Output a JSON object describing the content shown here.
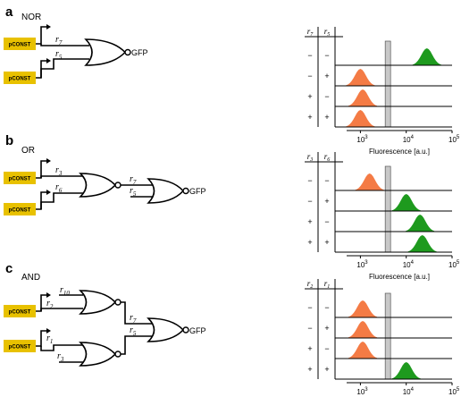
{
  "panels": [
    {
      "letter": "a",
      "gate_title": "NOR",
      "promoters": [
        "pCONST",
        "pCONST"
      ],
      "signals": [
        "r7",
        "r5"
      ],
      "signal_letters": [
        "r",
        "r"
      ],
      "signal_subs": [
        "7",
        "5"
      ],
      "output": "GFP",
      "table_headers": [
        "r7",
        "r5"
      ],
      "header_letters": [
        "r",
        "r"
      ],
      "header_subs": [
        "7",
        "5"
      ],
      "rows": [
        {
          "inputs": [
            "−",
            "−"
          ],
          "color": "green",
          "peak_log": 4.45
        },
        {
          "inputs": [
            "−",
            "+"
          ],
          "color": "orange",
          "peak_log": 3.0
        },
        {
          "inputs": [
            "+",
            "−"
          ],
          "color": "orange",
          "peak_log": 3.05
        },
        {
          "inputs": [
            "+",
            "+"
          ],
          "color": "orange",
          "peak_log": 3.0
        }
      ]
    },
    {
      "letter": "b",
      "gate_title": "OR",
      "promoters": [
        "pCONST",
        "pCONST"
      ],
      "signals": [
        "r3",
        "r6",
        "r7",
        "r5"
      ],
      "signal_letters": [
        "r",
        "r",
        "r",
        "r"
      ],
      "signal_subs": [
        "3",
        "6",
        "7",
        "5"
      ],
      "output": "GFP",
      "table_headers": [
        "r3",
        "r6"
      ],
      "header_letters": [
        "r",
        "r"
      ],
      "header_subs": [
        "3",
        "6"
      ],
      "rows": [
        {
          "inputs": [
            "−",
            "−"
          ],
          "color": "orange",
          "peak_log": 3.2
        },
        {
          "inputs": [
            "−",
            "+"
          ],
          "color": "green",
          "peak_log": 4.0
        },
        {
          "inputs": [
            "+",
            "−"
          ],
          "color": "green",
          "peak_log": 4.3
        },
        {
          "inputs": [
            "+",
            "+"
          ],
          "color": "green",
          "peak_log": 4.35
        }
      ]
    },
    {
      "letter": "c",
      "gate_title": "AND",
      "promoters": [
        "pCONST",
        "pCONST"
      ],
      "signals": [
        "r10",
        "r2",
        "r1",
        "r3",
        "r7",
        "r5"
      ],
      "signal_letters": [
        "r",
        "r",
        "r",
        "r",
        "r",
        "r"
      ],
      "signal_subs": [
        "10",
        "2",
        "1",
        "3",
        "7",
        "5"
      ],
      "output": "GFP",
      "table_headers": [
        "r2",
        "r1"
      ],
      "header_letters": [
        "r",
        "r"
      ],
      "header_subs": [
        "2",
        "1"
      ],
      "rows": [
        {
          "inputs": [
            "−",
            "−"
          ],
          "color": "orange",
          "peak_log": 3.05
        },
        {
          "inputs": [
            "−",
            "+"
          ],
          "color": "orange",
          "peak_log": 3.05
        },
        {
          "inputs": [
            "+",
            "−"
          ],
          "color": "orange",
          "peak_log": 3.05
        },
        {
          "inputs": [
            "+",
            "+"
          ],
          "color": "green",
          "peak_log": 4.0
        }
      ]
    }
  ],
  "axis": {
    "label": "Fluorescence [a.u.]",
    "tick_base": "10",
    "tick_exps": [
      "3",
      "4",
      "5"
    ],
    "threshold_log": 3.6
  },
  "colors": {
    "orange": "#f47b45",
    "green": "#1e9a1e",
    "promoter": "#e8c100",
    "threshold": "#c8c8c8"
  }
}
